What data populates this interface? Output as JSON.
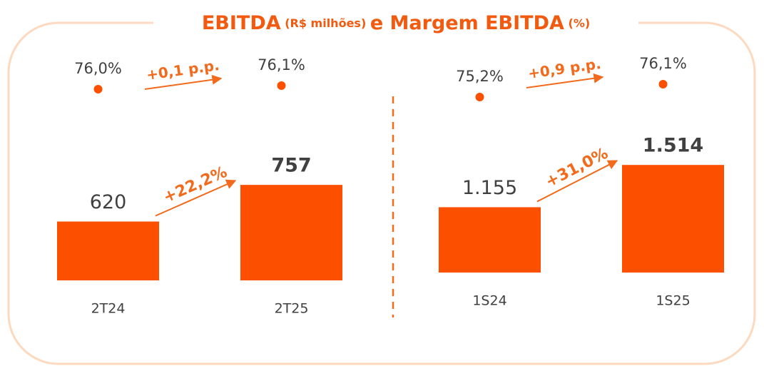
{
  "header": {
    "title": [
      "EBITDA",
      "(R$ milhões)",
      "e Margem EBITDA",
      "(%)"
    ]
  },
  "chart_data": [
    {
      "type": "bar",
      "categories": [
        "2T24",
        "2T25"
      ],
      "values": [
        620,
        757
      ],
      "value_labels": [
        "620",
        "757"
      ],
      "margins": [
        76.0,
        76.1
      ],
      "margin_labels": [
        "76,0%",
        "76,1%"
      ],
      "growth_label": "+22,2%",
      "margin_growth_label": "+0,1 p.p.",
      "color": "#fc5000",
      "ylim": [
        400,
        800
      ],
      "y2lim": [
        75.5,
        76.5
      ]
    },
    {
      "type": "bar",
      "categories": [
        "1S24",
        "1S25"
      ],
      "values": [
        1155,
        1514
      ],
      "value_labels": [
        "1.155",
        "1.514"
      ],
      "margins": [
        75.2,
        76.1
      ],
      "margin_labels": [
        "75,2%",
        "76,1%"
      ],
      "growth_label": "+31,0%",
      "margin_growth_label": "+0,9 p.p.",
      "color": "#fc5000",
      "ylim": [
        600,
        1600
      ],
      "y2lim": [
        74.5,
        77
      ]
    }
  ]
}
